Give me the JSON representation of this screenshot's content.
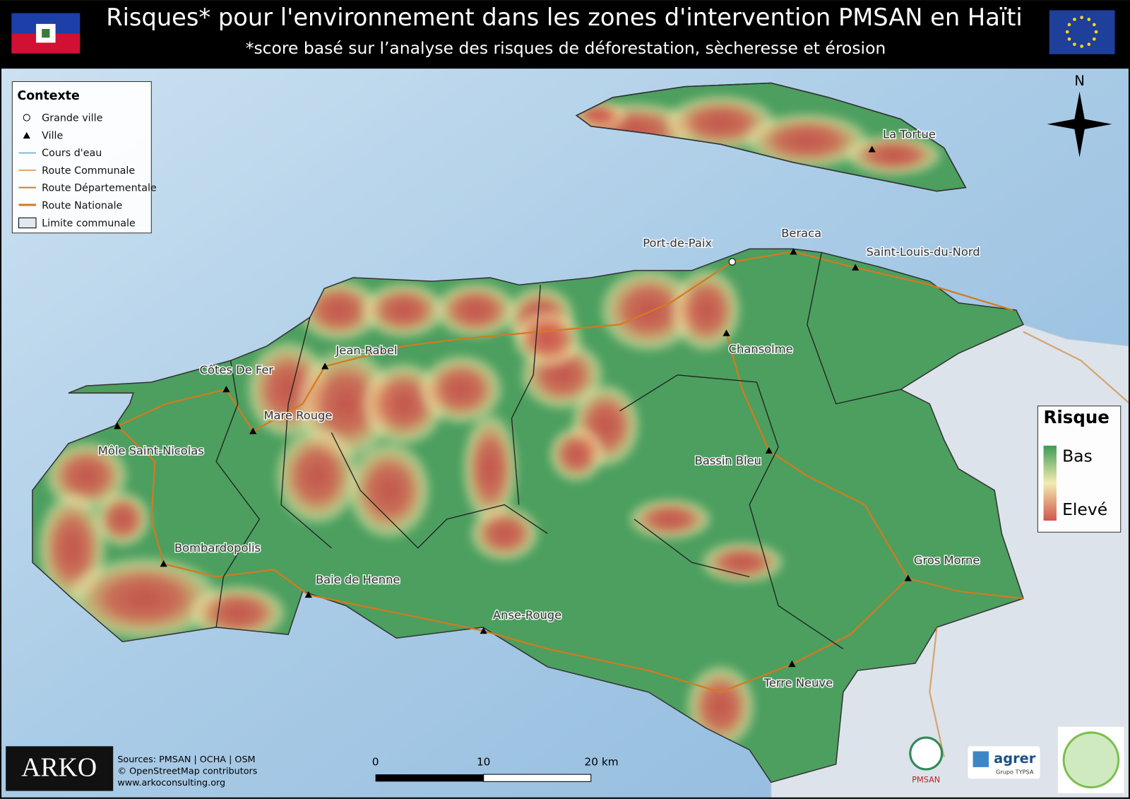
{
  "header": {
    "title": "Risques* pour l'environnement dans les zones d'intervention PMSAN en Haïti",
    "subtitle": "*score basé sur l’analyse des risques de déforestation, sècheresse et érosion"
  },
  "legend_context": {
    "title": "Contexte",
    "items": [
      "Grande ville",
      "Ville",
      "Cours d'eau",
      "Route Communale",
      "Route Départementale",
      "Route Nationale",
      "Limite communale"
    ]
  },
  "legend_risk": {
    "title": "Risque",
    "low": "Bas",
    "high": "Elevé"
  },
  "north": "N",
  "places": [
    "La Tortue",
    "Port-de-Paix",
    "Beraca",
    "Saint-Louis-du-Nord",
    "Chansolme",
    "Jean-Rabel",
    "Côtes De Fer",
    "Mare Rouge",
    "Môle Saint-Nicolas",
    "Bassin Bleu",
    "Bombardopolis",
    "Baie de Henne",
    "Anse-Rouge",
    "Gros Morne",
    "Terre Neuve"
  ],
  "scale_bar": [
    "0",
    "10",
    "20 km"
  ],
  "sources": [
    "Sources: PMSAN | OCHA | OSM",
    "© OpenStreetMap contributors",
    "www.arkoconsulting.org"
  ],
  "logos": {
    "arko": "ARKO",
    "pmsan": "PMSAN",
    "agrer": "agrer",
    "typsa": "Grupo TYPSA"
  }
}
